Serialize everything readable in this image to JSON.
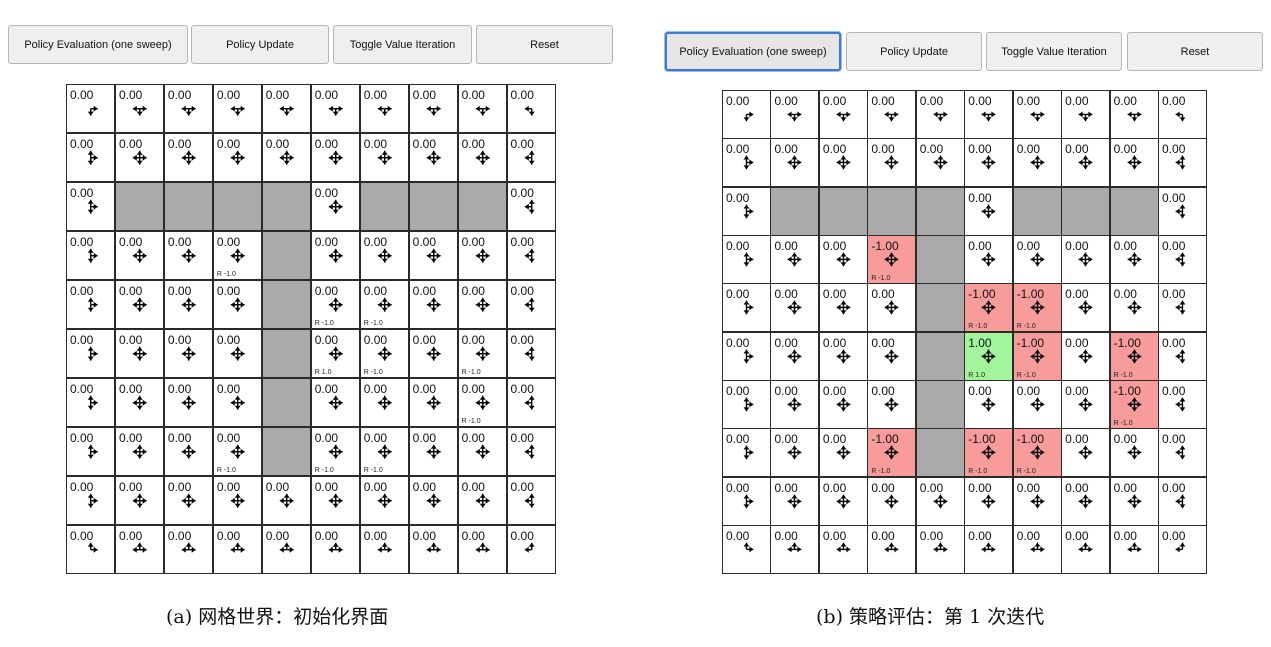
{
  "colors": {
    "negative": "#f79b9b",
    "positive": "#a3f59b",
    "wall": "#aaaaaa",
    "focus": "#3b78d8"
  },
  "buttons": [
    "Policy Evaluation (one sweep)",
    "Policy Update",
    "Toggle Value Iteration",
    "Reset"
  ],
  "walls": [
    [
      2,
      1
    ],
    [
      2,
      2
    ],
    [
      2,
      3
    ],
    [
      2,
      4
    ],
    [
      2,
      6
    ],
    [
      2,
      7
    ],
    [
      2,
      8
    ],
    [
      3,
      4
    ],
    [
      4,
      4
    ],
    [
      5,
      4
    ],
    [
      6,
      4
    ],
    [
      7,
      4
    ]
  ],
  "panels": [
    {
      "caption": "(a) 网格世界：初始化界面",
      "focused_button": null,
      "colored": [],
      "rewards": [
        {
          "r": 3,
          "c": 3,
          "label": "R -1.0"
        },
        {
          "r": 4,
          "c": 5,
          "label": "R -1.0"
        },
        {
          "r": 4,
          "c": 6,
          "label": "R -1.0"
        },
        {
          "r": 5,
          "c": 5,
          "label": "R 1.0"
        },
        {
          "r": 5,
          "c": 6,
          "label": "R -1.0"
        },
        {
          "r": 5,
          "c": 8,
          "label": "R -1.0"
        },
        {
          "r": 6,
          "c": 8,
          "label": "R -1.0"
        },
        {
          "r": 7,
          "c": 3,
          "label": "R -1.0"
        },
        {
          "r": 7,
          "c": 5,
          "label": "R -1.0"
        },
        {
          "r": 7,
          "c": 6,
          "label": "R -1.0"
        }
      ],
      "values": {}
    },
    {
      "caption": "(b) 策略评估：第 1 次迭代",
      "focused_button": 0,
      "colored": [
        {
          "r": 3,
          "c": 3,
          "kind": "negative"
        },
        {
          "r": 4,
          "c": 5,
          "kind": "negative"
        },
        {
          "r": 4,
          "c": 6,
          "kind": "negative"
        },
        {
          "r": 5,
          "c": 5,
          "kind": "positive"
        },
        {
          "r": 5,
          "c": 6,
          "kind": "negative"
        },
        {
          "r": 5,
          "c": 8,
          "kind": "negative"
        },
        {
          "r": 6,
          "c": 8,
          "kind": "negative"
        },
        {
          "r": 7,
          "c": 3,
          "kind": "negative"
        },
        {
          "r": 7,
          "c": 5,
          "kind": "negative"
        },
        {
          "r": 7,
          "c": 6,
          "kind": "negative"
        }
      ],
      "rewards": [
        {
          "r": 3,
          "c": 3,
          "label": "R -1.0"
        },
        {
          "r": 4,
          "c": 5,
          "label": "R -1.0"
        },
        {
          "r": 4,
          "c": 6,
          "label": "R -1.0"
        },
        {
          "r": 5,
          "c": 5,
          "label": "R 1.0"
        },
        {
          "r": 5,
          "c": 6,
          "label": "R -1.0"
        },
        {
          "r": 5,
          "c": 8,
          "label": "R -1.0"
        },
        {
          "r": 6,
          "c": 8,
          "label": "R -1.0"
        },
        {
          "r": 7,
          "c": 3,
          "label": "R -1.0"
        },
        {
          "r": 7,
          "c": 5,
          "label": "R -1.0"
        },
        {
          "r": 7,
          "c": 6,
          "label": "R -1.0"
        }
      ],
      "values": {
        "3,3": "-1.00",
        "4,5": "-1.00",
        "4,6": "-1.00",
        "5,5": "1.00",
        "5,6": "-1.00",
        "5,8": "-1.00",
        "6,8": "-1.00",
        "7,3": "-1.00",
        "7,5": "-1.00",
        "7,6": "-1.00"
      }
    }
  ],
  "default_value": "0.00"
}
